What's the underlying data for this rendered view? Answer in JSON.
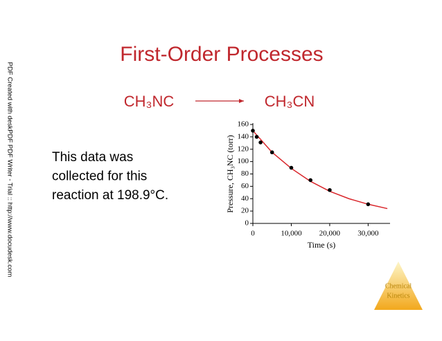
{
  "title": "First-Order Processes",
  "reaction": {
    "reactant": "CH₃NC",
    "product": "CH₃CN"
  },
  "body_lines": [
    "This data was",
    "collected for this",
    "reaction at 198.9°C."
  ],
  "watermark": "PDF Created with deskPDF PDF Writer - Trial :: http://www.docudesk.com",
  "logo": [
    "Chemical",
    "Kinetics"
  ],
  "chart_data": {
    "type": "scatter",
    "xlabel": "Time (s)",
    "ylabel": "Pressure, CH₃NC (torr)",
    "series": [
      {
        "color": "#000000",
        "x": [
          0,
          1000,
          2000,
          5000,
          10000,
          15000,
          20000,
          30000
        ],
        "values": [
          150,
          140,
          131,
          115,
          90,
          70,
          54,
          31
        ]
      },
      {
        "color": "#d9252a",
        "line": true,
        "x": [
          0,
          5000,
          10000,
          15000,
          20000,
          25000,
          30000,
          35000
        ],
        "values": [
          150,
          115,
          89,
          68,
          52,
          40,
          31,
          24
        ]
      }
    ],
    "xlim": [
      0,
      35700
    ],
    "ylim": [
      0,
      160
    ],
    "xticks": [
      0,
      {
        "value": 10000,
        "label": "10,000"
      },
      {
        "value": 20000,
        "label": "20,000"
      },
      {
        "value": 30000,
        "label": "30,000"
      }
    ],
    "yticks": [
      0,
      20,
      40,
      60,
      80,
      100,
      120,
      140,
      160
    ]
  }
}
